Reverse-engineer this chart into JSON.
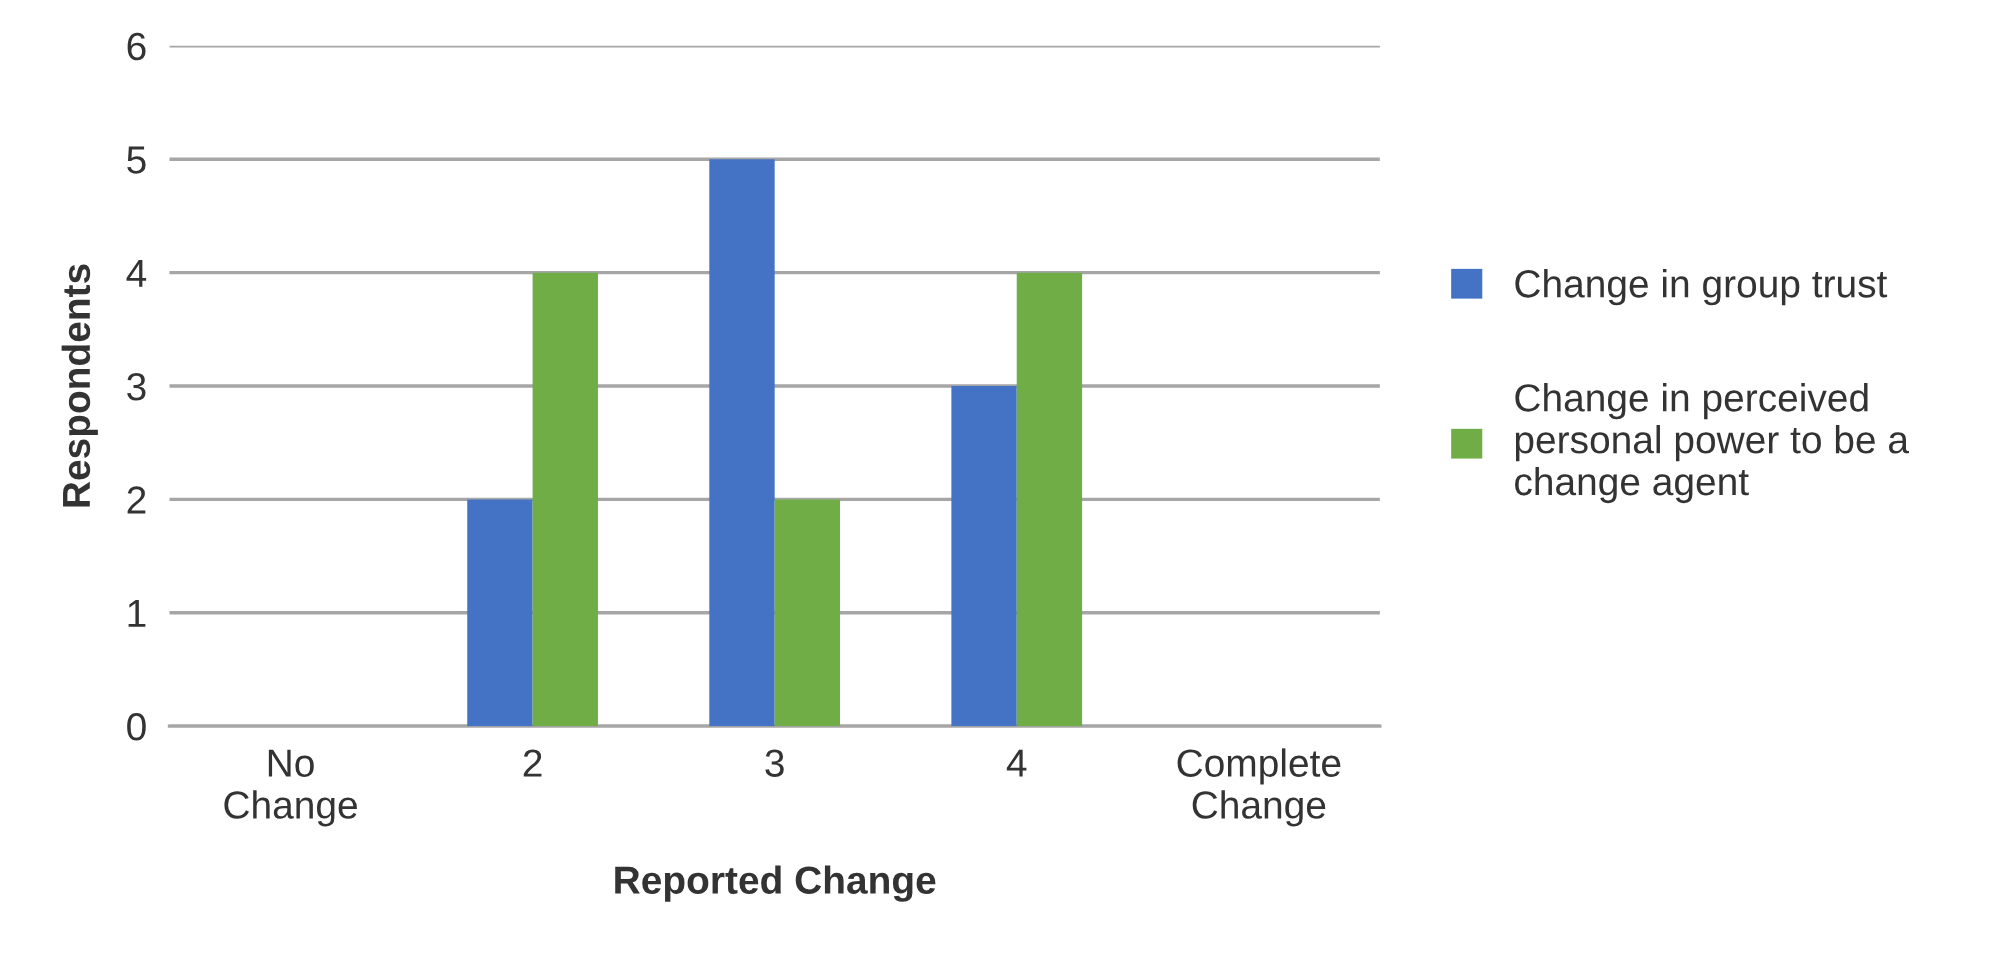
{
  "chart_data": {
    "type": "bar",
    "xlabel": "Reported Change",
    "ylabel": "Respondents",
    "categories": [
      "No\nChange",
      "2",
      "3",
      "4",
      "Complete\nChange"
    ],
    "series": [
      {
        "name": "Change in group trust",
        "color": "#4472c4",
        "values": [
          0,
          2,
          5,
          3,
          0
        ]
      },
      {
        "name": "Change in perceived\npersonal power to be a\nchange agent",
        "color": "#70ad47",
        "values": [
          0,
          4,
          2,
          4,
          0
        ]
      }
    ],
    "ylim": [
      0,
      6
    ],
    "yticks": [
      0,
      1,
      2,
      3,
      4,
      5,
      6
    ],
    "grid": "y",
    "legend": "right"
  }
}
